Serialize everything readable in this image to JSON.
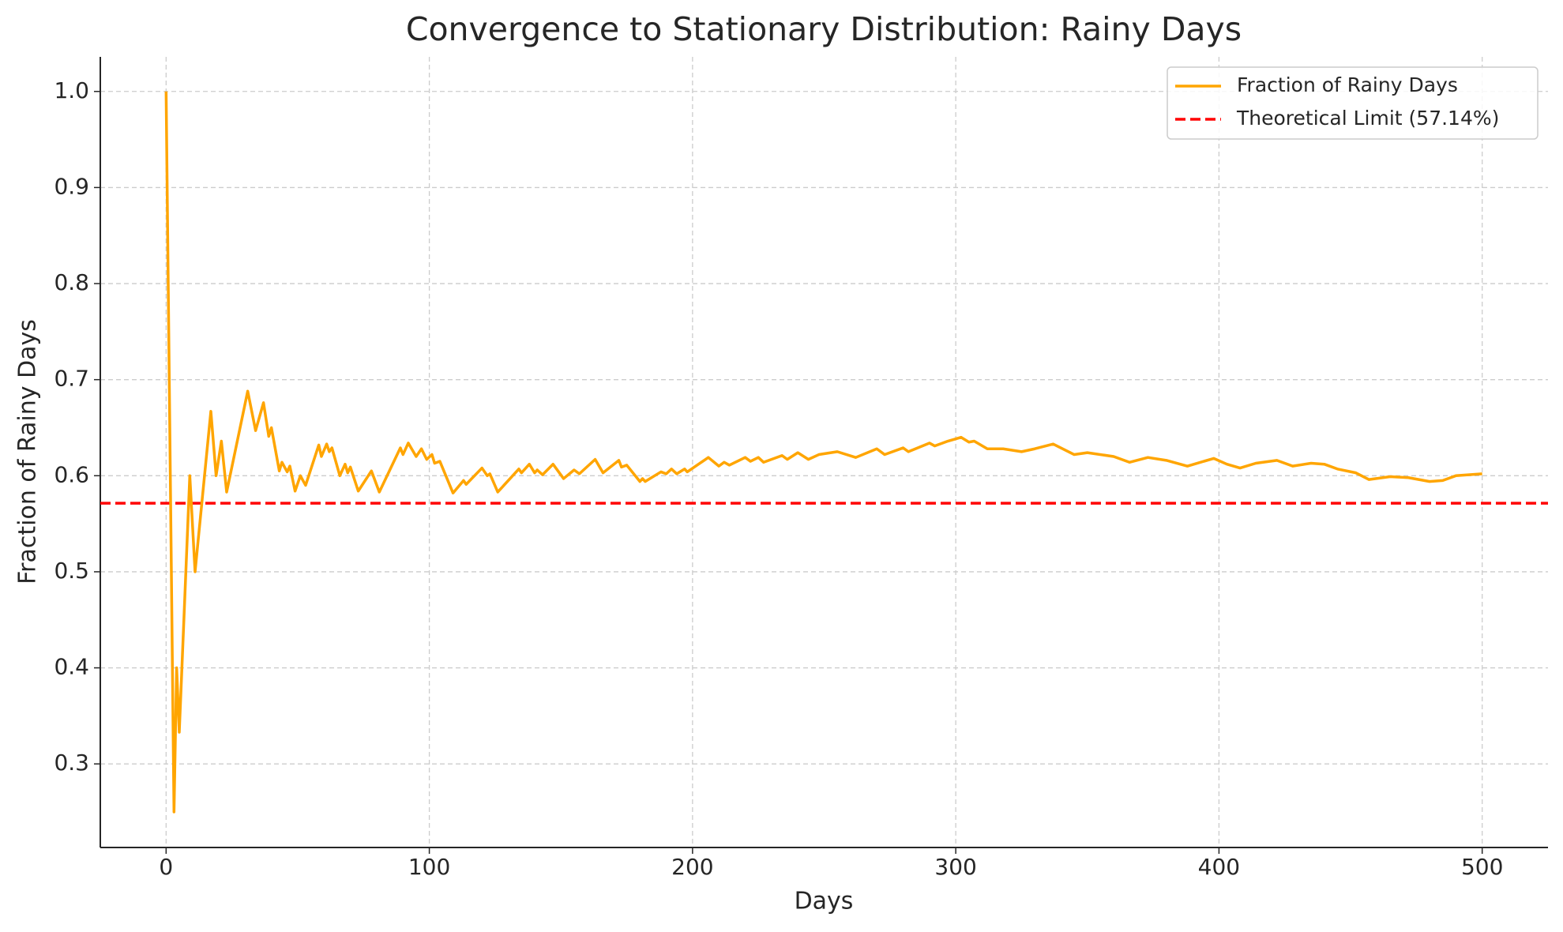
{
  "chart_data": {
    "type": "line",
    "title": "Convergence to Stationary Distribution: Rainy Days",
    "x_label": "Days",
    "y_label": "Fraction of Rainy Days",
    "x": [
      0,
      3,
      4,
      5,
      9,
      11,
      17,
      19,
      21,
      23,
      31,
      34,
      37,
      39,
      40,
      43,
      44,
      46,
      47,
      49,
      51,
      53,
      58,
      59,
      61,
      62,
      63,
      66,
      68,
      69,
      70,
      73,
      78,
      81,
      89,
      90,
      92,
      95,
      97,
      99,
      101,
      102,
      104,
      109,
      113,
      114,
      120,
      122,
      123,
      126,
      134,
      135,
      138,
      140,
      141,
      143,
      147,
      151,
      155,
      157,
      163,
      166,
      172,
      173,
      175,
      180,
      181,
      182,
      188,
      190,
      192,
      194,
      197,
      198,
      206,
      210,
      212,
      214,
      220,
      222,
      225,
      227,
      234,
      236,
      240,
      244,
      248,
      255,
      262,
      270,
      273,
      280,
      282,
      290,
      292,
      297,
      302,
      305,
      307,
      312,
      318,
      325,
      330,
      337,
      345,
      350,
      360,
      366,
      373,
      380,
      388,
      398,
      403,
      408,
      414,
      422,
      428,
      435,
      440,
      445,
      452,
      457,
      465,
      472,
      480,
      485,
      490,
      500
    ],
    "series": [
      {
        "name": "Fraction of Rainy Days",
        "color": "#FFA500",
        "values": [
          1.0,
          0.25,
          0.4,
          0.333,
          0.6,
          0.5,
          0.667,
          0.6,
          0.636,
          0.583,
          0.688,
          0.647,
          0.676,
          0.641,
          0.65,
          0.605,
          0.614,
          0.604,
          0.61,
          0.584,
          0.6,
          0.59,
          0.632,
          0.62,
          0.633,
          0.625,
          0.629,
          0.6,
          0.612,
          0.603,
          0.609,
          0.584,
          0.605,
          0.583,
          0.629,
          0.622,
          0.634,
          0.62,
          0.628,
          0.617,
          0.622,
          0.613,
          0.615,
          0.582,
          0.595,
          0.591,
          0.608,
          0.6,
          0.602,
          0.583,
          0.607,
          0.603,
          0.612,
          0.603,
          0.606,
          0.601,
          0.612,
          0.597,
          0.606,
          0.602,
          0.617,
          0.603,
          0.616,
          0.609,
          0.611,
          0.594,
          0.597,
          0.594,
          0.604,
          0.602,
          0.607,
          0.602,
          0.607,
          0.604,
          0.619,
          0.61,
          0.614,
          0.611,
          0.619,
          0.615,
          0.619,
          0.614,
          0.621,
          0.617,
          0.624,
          0.617,
          0.622,
          0.625,
          0.619,
          0.628,
          0.622,
          0.629,
          0.625,
          0.634,
          0.631,
          0.636,
          0.64,
          0.635,
          0.636,
          0.628,
          0.628,
          0.625,
          0.628,
          0.633,
          0.622,
          0.624,
          0.62,
          0.614,
          0.619,
          0.616,
          0.61,
          0.618,
          0.612,
          0.608,
          0.613,
          0.616,
          0.61,
          0.613,
          0.612,
          0.607,
          0.603,
          0.596,
          0.599,
          0.598,
          0.594,
          0.595,
          0.6,
          0.602
        ]
      }
    ],
    "reference_line": {
      "name": "Theoretical Limit (57.14%)",
      "value": 0.5714,
      "color": "#FF0000",
      "style": "dashed"
    },
    "xlim": [
      -25,
      525
    ],
    "xticks": [
      0,
      100,
      200,
      300,
      400,
      500
    ],
    "ylim": [
      0.213,
      1.036
    ],
    "yticks": [
      0.3,
      0.4,
      0.5,
      0.6,
      0.7,
      0.8,
      0.9,
      {
        "value": 1,
        "label": "1.0"
      }
    ],
    "grid": true,
    "legend": "upper right"
  }
}
